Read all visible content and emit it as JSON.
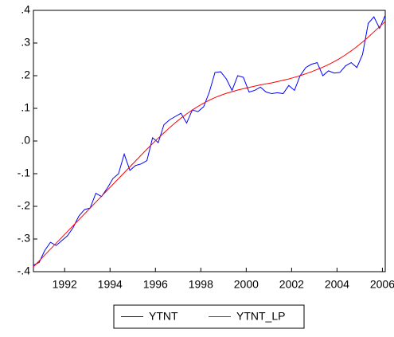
{
  "chart_data": {
    "type": "line",
    "x": [
      1990.625,
      1990.875,
      1991.125,
      1991.375,
      1991.625,
      1991.875,
      1992.125,
      1992.375,
      1992.625,
      1992.875,
      1993.125,
      1993.375,
      1993.625,
      1993.875,
      1994.125,
      1994.375,
      1994.625,
      1994.875,
      1995.125,
      1995.375,
      1995.625,
      1995.875,
      1996.125,
      1996.375,
      1996.625,
      1996.875,
      1997.125,
      1997.375,
      1997.625,
      1997.875,
      1998.125,
      1998.375,
      1998.625,
      1998.875,
      1999.125,
      1999.375,
      1999.625,
      1999.875,
      2000.125,
      2000.375,
      2000.625,
      2000.875,
      2001.125,
      2001.375,
      2001.625,
      2001.875,
      2002.125,
      2002.375,
      2002.625,
      2002.875,
      2003.125,
      2003.375,
      2003.625,
      2003.875,
      2004.125,
      2004.375,
      2004.625,
      2004.875,
      2005.125,
      2005.375,
      2005.625,
      2005.875,
      2006.125
    ],
    "series": [
      {
        "name": "YTNT",
        "color": "#0000ff",
        "values": [
          -0.38,
          -0.372,
          -0.335,
          -0.31,
          -0.32,
          -0.305,
          -0.29,
          -0.265,
          -0.23,
          -0.21,
          -0.205,
          -0.16,
          -0.17,
          -0.145,
          -0.115,
          -0.1,
          -0.04,
          -0.09,
          -0.075,
          -0.07,
          -0.06,
          0.01,
          -0.005,
          0.05,
          0.065,
          0.075,
          0.085,
          0.055,
          0.095,
          0.09,
          0.105,
          0.15,
          0.21,
          0.212,
          0.19,
          0.155,
          0.2,
          0.195,
          0.15,
          0.155,
          0.165,
          0.15,
          0.145,
          0.148,
          0.145,
          0.17,
          0.155,
          0.2,
          0.225,
          0.235,
          0.24,
          0.2,
          0.215,
          0.208,
          0.21,
          0.23,
          0.24,
          0.225,
          0.265,
          0.36,
          0.38,
          0.345,
          0.385
        ]
      },
      {
        "name": "YTNT_LP",
        "color": "#ff0000",
        "values": [
          -0.385,
          -0.367,
          -0.349,
          -0.331,
          -0.313,
          -0.295,
          -0.277,
          -0.259,
          -0.241,
          -0.223,
          -0.205,
          -0.187,
          -0.169,
          -0.151,
          -0.133,
          -0.115,
          -0.097,
          -0.079,
          -0.061,
          -0.043,
          -0.025,
          -0.008,
          0.009,
          0.025,
          0.041,
          0.056,
          0.07,
          0.083,
          0.095,
          0.106,
          0.116,
          0.125,
          0.133,
          0.14,
          0.146,
          0.151,
          0.156,
          0.16,
          0.164,
          0.168,
          0.172,
          0.175,
          0.178,
          0.182,
          0.186,
          0.19,
          0.195,
          0.2,
          0.206,
          0.212,
          0.219,
          0.226,
          0.234,
          0.243,
          0.253,
          0.264,
          0.276,
          0.289,
          0.303,
          0.318,
          0.334,
          0.35,
          0.366
        ]
      }
    ],
    "xlim": [
      1990.625,
      2006.125
    ],
    "xticks": [
      1992,
      1994,
      1996,
      1998,
      2000,
      2002,
      2004,
      2006
    ],
    "ylim": [
      -0.4,
      0.4
    ],
    "yticks": [
      {
        "value": -0.4,
        "label": "-.4"
      },
      {
        "value": -0.3,
        "label": "-.3"
      },
      {
        "value": -0.2,
        "label": "-.2"
      },
      {
        "value": -0.1,
        "label": "-.1"
      },
      {
        "value": 0,
        "label": ".0"
      },
      {
        "value": 0.1,
        "label": ".1"
      },
      {
        "value": 0.2,
        "label": ".2"
      },
      {
        "value": 0.3,
        "label": ".3"
      },
      {
        "value": 0.4,
        "label": ".4"
      }
    ],
    "grid": false
  }
}
